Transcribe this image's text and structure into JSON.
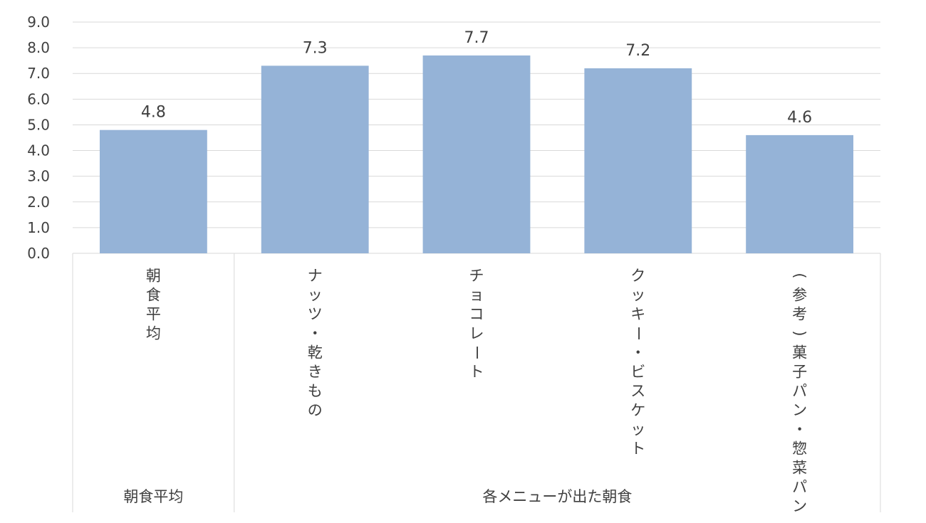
{
  "chart_data": {
    "type": "bar",
    "title": "",
    "xlabel": "",
    "ylabel": "",
    "categories": [
      "朝食平均",
      "ナッツ・乾きもの",
      "チョコレート",
      "クッキー・ビスケット",
      "(参考)菓子パン・惣菜パン"
    ],
    "values": [
      4.8,
      7.3,
      7.7,
      7.2,
      4.6
    ],
    "data_labels": [
      "4.8",
      "7.3",
      "7.7",
      "7.2",
      "4.6"
    ],
    "ylim": [
      0,
      9
    ],
    "yticks": [
      "0.0",
      "1.0",
      "2.0",
      "3.0",
      "4.0",
      "5.0",
      "6.0",
      "7.0",
      "8.0",
      "9.0"
    ],
    "groups": [
      {
        "label": "朝食平均",
        "span": 1
      },
      {
        "label": "各メニューが出た朝食",
        "span": 4
      }
    ],
    "grid": true,
    "legend": "none",
    "colors": {
      "bar": "#95B3D7",
      "grid": "#D9D9D9",
      "axis": "#D9D9D9",
      "text": "#404040"
    }
  }
}
